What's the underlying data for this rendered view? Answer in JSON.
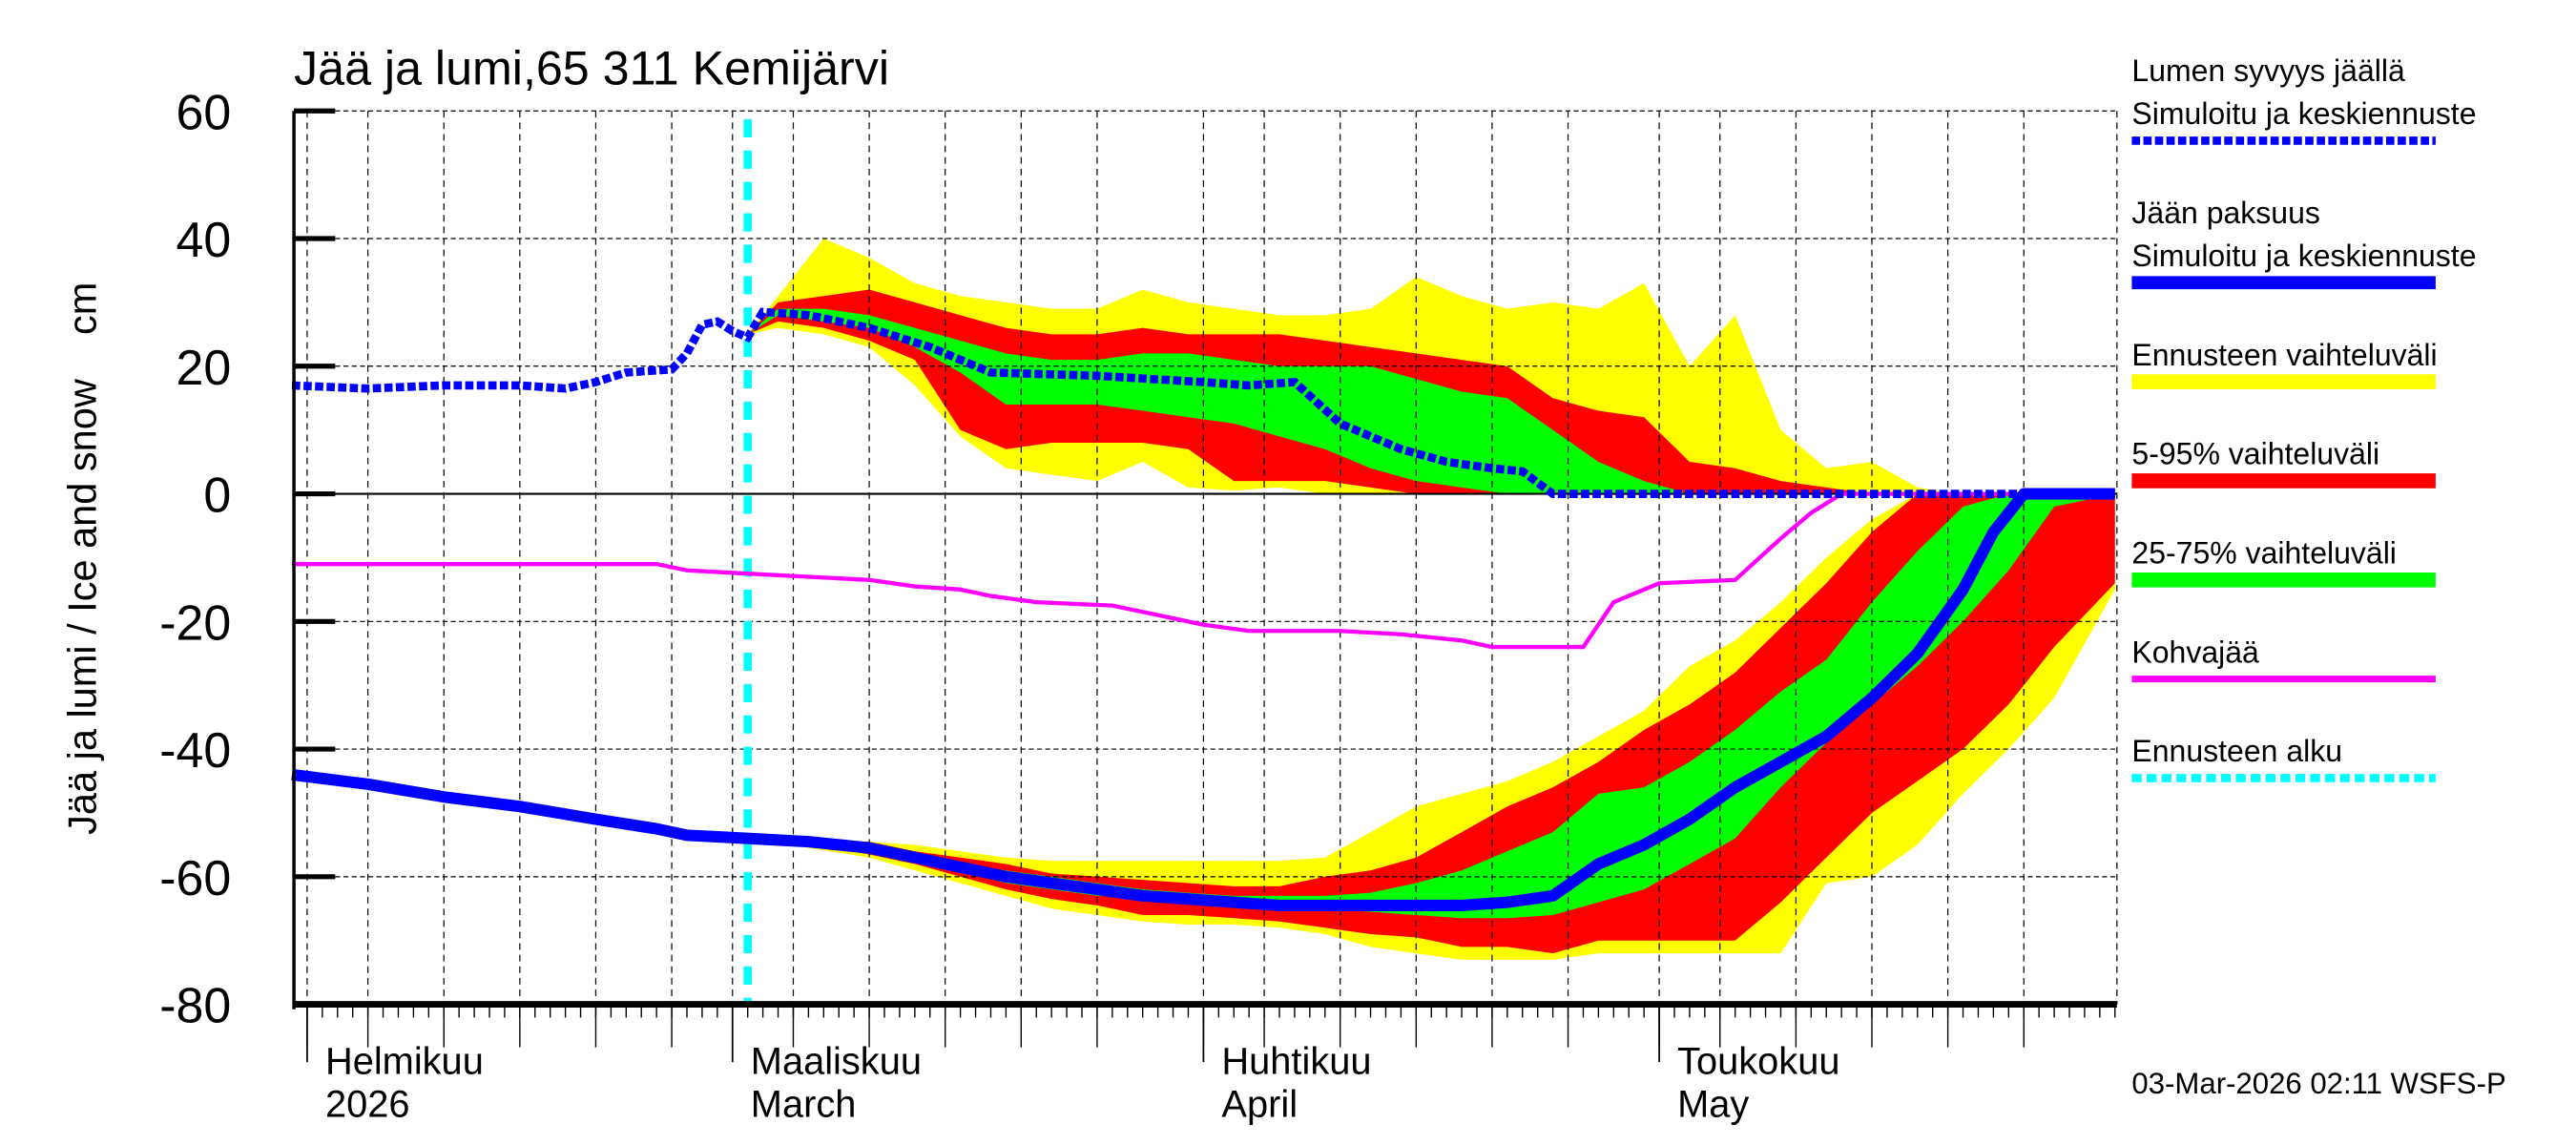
{
  "chart_data": {
    "type": "area",
    "title": "Jää ja lumi,65 311 Kemijärvi",
    "ylabel": "Jää ja lumi / Ice and snow    cm",
    "ylim": [
      -80,
      60
    ],
    "yticks": [
      "60",
      "40",
      "20",
      "0",
      "-20",
      "-40",
      "-60",
      "-80"
    ],
    "xlim": [
      "2026-01-31",
      "2026-05-31"
    ],
    "forecast_start": "2026-03-02",
    "grid": true,
    "legend_placement": "right",
    "x_month_labels": [
      {
        "date": "2026-02-01",
        "fi": "Helmikuu",
        "en": "2026"
      },
      {
        "date": "2026-03-01",
        "fi": "Maaliskuu",
        "en": "March"
      },
      {
        "date": "2026-04-01",
        "fi": "Huhtikuu",
        "en": "April"
      },
      {
        "date": "2026-05-01",
        "fi": "Toukokuu",
        "en": "May"
      }
    ],
    "snow_depth_median": {
      "dates": [
        "2026-01-31",
        "2026-02-05",
        "2026-02-10",
        "2026-02-15",
        "2026-02-18",
        "2026-02-20",
        "2026-02-22",
        "2026-02-25",
        "2026-02-26",
        "2026-02-27",
        "2026-02-28",
        "2026-03-01",
        "2026-03-02",
        "2026-03-03",
        "2026-03-06",
        "2026-03-10",
        "2026-03-14",
        "2026-03-18",
        "2026-03-25",
        "2026-04-01",
        "2026-04-04",
        "2026-04-07",
        "2026-04-10",
        "2026-04-14",
        "2026-04-17",
        "2026-04-20",
        "2026-04-22",
        "2026-04-24",
        "2026-05-31"
      ],
      "values": [
        17,
        16.5,
        17,
        17,
        16.5,
        17.5,
        19,
        19.5,
        22,
        26.5,
        27,
        25.5,
        24.5,
        28.5,
        28,
        26,
        23,
        19,
        18.5,
        17.5,
        17,
        17.5,
        11,
        7,
        5,
        4,
        3.5,
        0,
        0
      ]
    },
    "snow_bands": {
      "dates": [
        "2026-03-02",
        "2026-03-04",
        "2026-03-07",
        "2026-03-10",
        "2026-03-13",
        "2026-03-16",
        "2026-03-19",
        "2026-03-22",
        "2026-03-25",
        "2026-03-28",
        "2026-03-31",
        "2026-04-03",
        "2026-04-06",
        "2026-04-09",
        "2026-04-12",
        "2026-04-15",
        "2026-04-18",
        "2026-04-21",
        "2026-04-24",
        "2026-04-27",
        "2026-04-30",
        "2026-05-03",
        "2026-05-06",
        "2026-05-09",
        "2026-05-12",
        "2026-05-15",
        "2026-05-18",
        "2026-05-21",
        "2026-05-31"
      ],
      "range_lo": [
        25,
        26,
        25,
        23,
        17,
        9,
        4,
        3,
        2,
        5,
        1,
        0.5,
        1,
        0,
        0,
        0,
        0,
        0,
        0,
        0,
        0,
        0,
        0,
        0,
        0,
        0,
        0,
        0,
        0
      ],
      "p5": [
        25,
        27,
        26,
        24,
        21,
        10,
        7,
        8,
        8,
        8,
        7,
        2,
        2,
        2,
        1,
        0,
        0,
        0,
        0,
        0,
        0,
        0,
        0,
        0,
        0,
        0,
        0,
        0,
        0
      ],
      "p25": [
        25,
        28,
        27,
        26,
        23,
        19,
        14,
        14,
        14,
        13,
        12,
        11,
        9,
        7,
        4,
        2,
        1,
        0,
        0,
        0,
        0,
        0,
        0,
        0,
        0,
        0,
        0,
        0,
        0
      ],
      "p75": [
        25,
        29,
        29,
        28,
        26,
        24,
        22,
        21,
        21,
        22,
        22,
        21,
        20,
        20,
        20,
        18,
        16,
        15,
        10,
        5,
        2,
        0,
        0,
        0,
        0,
        0,
        0,
        0,
        0
      ],
      "p95": [
        25,
        30,
        31,
        32,
        30,
        28,
        26,
        25,
        25,
        26,
        25,
        25,
        25,
        24,
        23,
        22,
        21,
        20,
        15,
        13,
        12,
        5,
        4,
        2,
        1,
        0,
        0,
        0,
        0
      ],
      "range_hi": [
        25,
        31,
        40,
        37,
        33,
        31,
        30,
        29,
        29,
        32,
        30,
        29,
        28,
        28,
        29,
        34,
        31,
        29,
        30,
        29,
        33,
        20,
        28,
        10,
        4,
        5,
        1,
        0,
        0
      ]
    },
    "ice_thickness_median": {
      "dates": [
        "2026-01-31",
        "2026-02-05",
        "2026-02-10",
        "2026-02-15",
        "2026-02-20",
        "2026-02-24",
        "2026-02-26",
        "2026-03-02",
        "2026-03-06",
        "2026-03-10",
        "2026-03-13",
        "2026-03-16",
        "2026-03-19",
        "2026-03-22",
        "2026-03-25",
        "2026-03-28",
        "2026-03-31",
        "2026-04-03",
        "2026-04-06",
        "2026-04-09",
        "2026-04-12",
        "2026-04-15",
        "2026-04-18",
        "2026-04-21",
        "2026-04-24",
        "2026-04-27",
        "2026-04-30",
        "2026-05-03",
        "2026-05-06",
        "2026-05-09",
        "2026-05-12",
        "2026-05-15",
        "2026-05-18",
        "2026-05-21",
        "2026-05-23",
        "2026-05-25",
        "2026-05-31"
      ],
      "values": [
        -44,
        -45.5,
        -47.5,
        -49,
        -51,
        -52.5,
        -53.5,
        -54,
        -54.5,
        -55.5,
        -57,
        -58.5,
        -60,
        -61,
        -62,
        -63,
        -63.5,
        -64,
        -64.5,
        -64.5,
        -64.5,
        -64.5,
        -64.5,
        -64,
        -63,
        -58,
        -55,
        -51,
        -46,
        -42,
        -38,
        -32,
        -25,
        -15,
        -6,
        0,
        0
      ]
    },
    "ice_bands": {
      "dates": [
        "2026-03-02",
        "2026-03-06",
        "2026-03-10",
        "2026-03-13",
        "2026-03-16",
        "2026-03-19",
        "2026-03-22",
        "2026-03-25",
        "2026-03-28",
        "2026-03-31",
        "2026-04-03",
        "2026-04-06",
        "2026-04-09",
        "2026-04-12",
        "2026-04-15",
        "2026-04-18",
        "2026-04-21",
        "2026-04-24",
        "2026-04-27",
        "2026-04-30",
        "2026-05-03",
        "2026-05-06",
        "2026-05-09",
        "2026-05-12",
        "2026-05-15",
        "2026-05-18",
        "2026-05-21",
        "2026-05-24",
        "2026-05-27",
        "2026-05-31"
      ],
      "range_lo": [
        -54,
        -55.5,
        -57,
        -59,
        -61,
        -63,
        -65,
        -66,
        -67,
        -67.5,
        -67.5,
        -68,
        -69,
        -71,
        -72,
        -73,
        -73,
        -73,
        -72,
        -72,
        -72,
        -72,
        -72,
        -61,
        -60,
        -55,
        -47,
        -40,
        -32,
        -15
      ],
      "p5": [
        -54,
        -55,
        -56.5,
        -58,
        -60,
        -62,
        -63.5,
        -64.5,
        -66,
        -66,
        -66.5,
        -67,
        -68,
        -69,
        -69.5,
        -71,
        -71,
        -72,
        -70,
        -70,
        -70,
        -70,
        -64,
        -57,
        -50,
        -45,
        -40,
        -33,
        -24,
        -14
      ],
      "p25": [
        -54,
        -55,
        -56,
        -57.5,
        -59,
        -61,
        -62,
        -63,
        -63.5,
        -64,
        -64.5,
        -65,
        -65,
        -65.5,
        -66,
        -66.5,
        -66.5,
        -66,
        -64,
        -62,
        -58,
        -54,
        -46,
        -39,
        -33,
        -27,
        -20,
        -12,
        -2,
        0
      ],
      "p75": [
        -54,
        -54.5,
        -55,
        -56.5,
        -58,
        -59,
        -60,
        -61,
        -62,
        -62.5,
        -63,
        -63,
        -63,
        -62.5,
        -61,
        -59,
        -56,
        -53,
        -47,
        -46,
        -42,
        -37,
        -31,
        -26,
        -17,
        -9,
        -2,
        0,
        0,
        0
      ],
      "p95": [
        -54,
        -54.5,
        -54.5,
        -56,
        -57,
        -58,
        -59.5,
        -60,
        -60.5,
        -61,
        -61.5,
        -61.5,
        -60,
        -59,
        -57,
        -53,
        -49,
        -46,
        -42,
        -37,
        -33,
        -28,
        -21,
        -14,
        -6,
        0,
        0,
        0,
        0,
        0
      ],
      "range_hi": [
        -54,
        -54,
        -54.5,
        -55,
        -56,
        -57,
        -57.5,
        -57.5,
        -57.5,
        -57.5,
        -57.5,
        -57.5,
        -57,
        -53,
        -49,
        -47,
        -45,
        -42,
        -38,
        -34,
        -27,
        -23,
        -17,
        -10,
        -4,
        0,
        0,
        0,
        0,
        0
      ]
    },
    "slush_ice": {
      "dates": [
        "2026-01-31",
        "2026-02-24",
        "2026-02-26",
        "2026-03-02",
        "2026-03-06",
        "2026-03-10",
        "2026-03-13",
        "2026-03-16",
        "2026-03-18",
        "2026-03-21",
        "2026-03-26",
        "2026-03-29",
        "2026-04-01",
        "2026-04-04",
        "2026-04-10",
        "2026-04-14",
        "2026-04-18",
        "2026-04-20",
        "2026-04-26",
        "2026-04-28",
        "2026-05-01",
        "2026-05-06",
        "2026-05-09",
        "2026-05-11",
        "2026-05-13",
        "2026-05-31"
      ],
      "values": [
        -11,
        -11,
        -12,
        -12.5,
        -13,
        -13.5,
        -14.5,
        -15,
        -16,
        -17,
        -17.5,
        -19,
        -20.5,
        -21.5,
        -21.5,
        -22,
        -23,
        -24,
        -24,
        -17,
        -14,
        -13.5,
        -7,
        -3,
        0,
        0
      ]
    },
    "legend": [
      {
        "label": "Lumen syvyys jäällä",
        "label2": "Simuloitu ja keskiennuste",
        "color": "#0000ff",
        "style": "dotted"
      },
      {
        "label": "Jään paksuus",
        "label2": "Simuloitu ja keskiennuste",
        "color": "#0000ff",
        "style": "solid"
      },
      {
        "label": "Ennusteen vaihteluväli",
        "color": "#ffff00",
        "style": "band"
      },
      {
        "label": "5-95% vaihteluväli",
        "color": "#ff0000",
        "style": "band"
      },
      {
        "label": "25-75% vaihteluväli",
        "color": "#00ff00",
        "style": "band"
      },
      {
        "label": "Kohvajää",
        "color": "#ff00ff",
        "style": "line"
      },
      {
        "label": "Ennusteen alku",
        "color": "#00ffff",
        "style": "dashed"
      }
    ]
  },
  "footer": "03-Mar-2026 02:11 WSFS-P"
}
